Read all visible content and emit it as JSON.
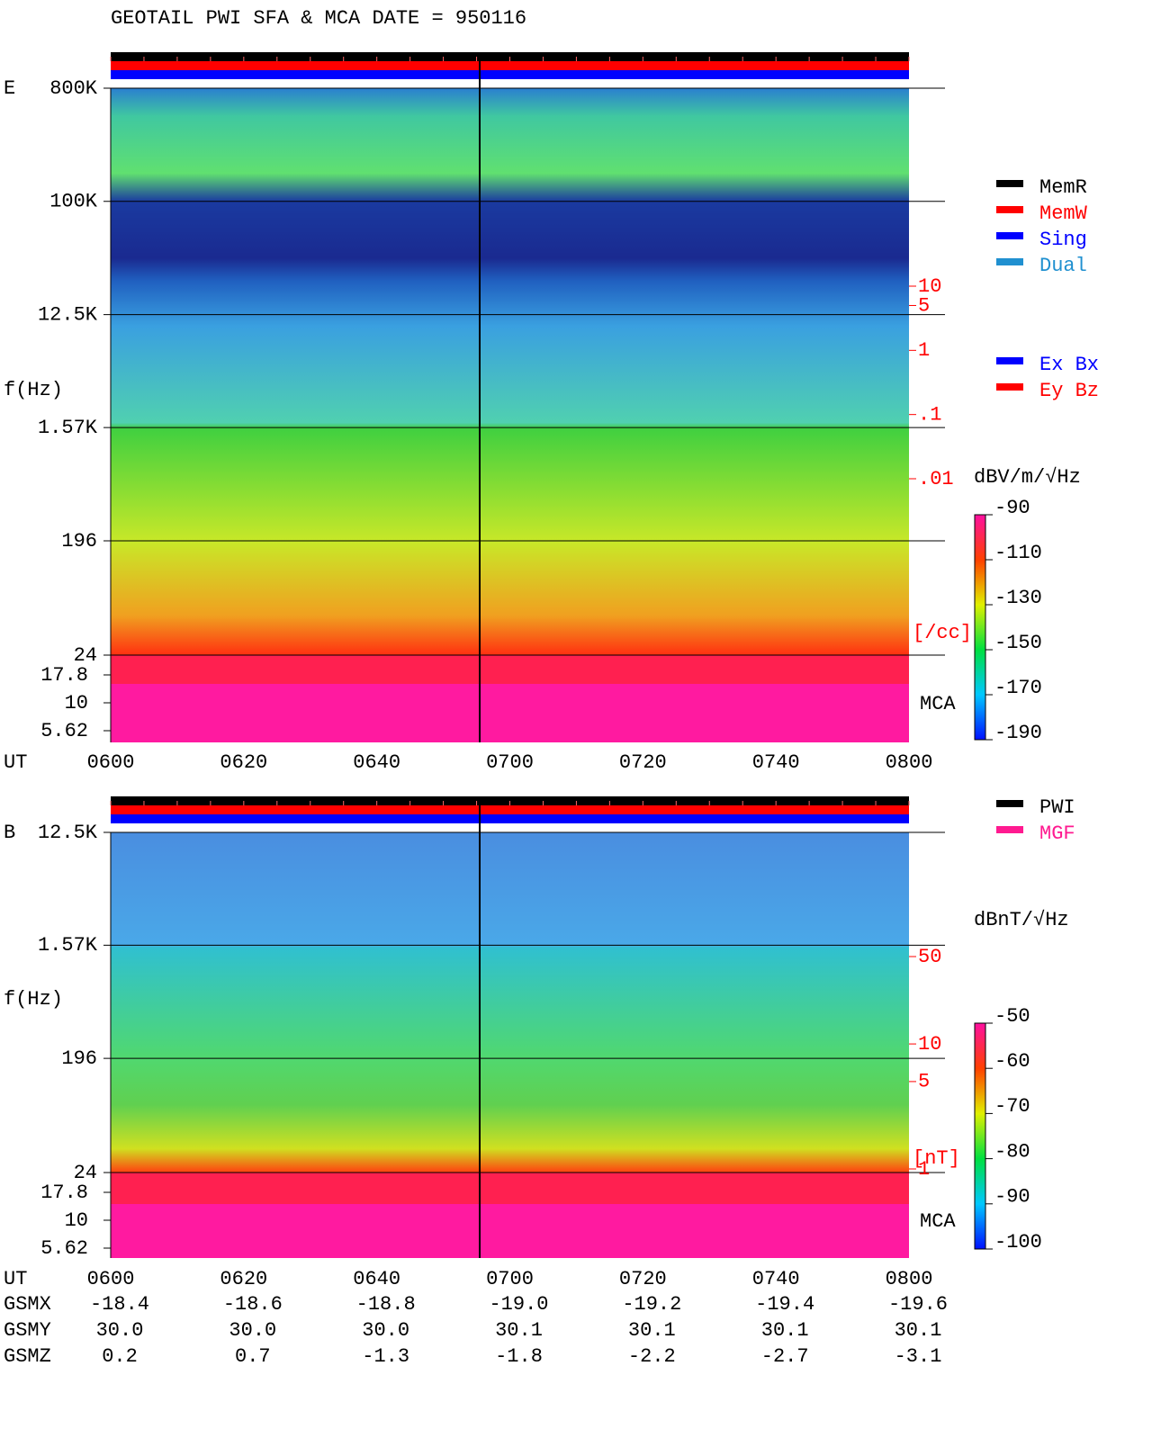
{
  "title": "GEOTAIL  PWI SFA & MCA  DATE = 950116",
  "chart_data": [
    {
      "type": "spectrogram",
      "panel_label": "E",
      "ylabel": "f(Hz)",
      "yscale": "log",
      "ylim": [
        24,
        800000
      ],
      "yticks": [
        {
          "value": 800000,
          "label": "800K"
        },
        {
          "value": 100000,
          "label": "100K"
        },
        {
          "value": 12500,
          "label": "12.5K"
        },
        {
          "value": 1570,
          "label": "1.57K"
        },
        196,
        24
      ],
      "mca_label": "MCA",
      "mca_ylim": [
        5.62,
        17.8
      ],
      "mca_yticks": [
        17.8,
        10,
        5.62
      ],
      "x_label": "UT",
      "xticks": [
        "0600",
        "0620",
        "0640",
        "0700",
        "0720",
        "0740",
        "0800"
      ],
      "colorbar": {
        "label": "dBV/m/√Hz",
        "lim": [
          -190,
          -90
        ],
        "ticks": [
          -90,
          -110,
          -130,
          -150,
          -170,
          -190
        ]
      },
      "density_axis": {
        "lim": [
          0.01,
          10
        ],
        "ticks": [
          10,
          5,
          1,
          {
            "value": 0.1,
            "label": ".1"
          },
          {
            "value": 0.01,
            "label": ".01"
          }
        ],
        "unit": "[/cc]",
        "color": "#ff0000"
      },
      "legend": [
        {
          "name": "MemR",
          "color": "#000000"
        },
        {
          "name": "MemW",
          "color": "#ff0000"
        },
        {
          "name": "Sing",
          "color": "#0000ff"
        },
        {
          "name": "Dual",
          "color": "#2090d0"
        }
      ],
      "legend2": [
        {
          "name": "Ex Bx",
          "color": "#0000ff"
        },
        {
          "name": "Ey Bz",
          "color": "#ff0000"
        }
      ]
    },
    {
      "type": "spectrogram",
      "panel_label": "B",
      "ylabel": "f(Hz)",
      "yscale": "log",
      "ylim": [
        24,
        12500
      ],
      "yticks": [
        {
          "value": 12500,
          "label": "12.5K"
        },
        {
          "value": 1570,
          "label": "1.57K"
        },
        196,
        24
      ],
      "mca_label": "MCA",
      "mca_ylim": [
        5.62,
        17.8
      ],
      "mca_yticks": [
        17.8,
        10,
        5.62
      ],
      "x_label": "UT",
      "xticks": [
        "0600",
        "0620",
        "0640",
        "0700",
        "0720",
        "0740",
        "0800"
      ],
      "colorbar": {
        "label": "dBnT/√Hz",
        "lim": [
          -100,
          -50
        ],
        "ticks": [
          -50,
          -60,
          -70,
          -80,
          -90,
          -100
        ]
      },
      "density_axis": {
        "lim": [
          1,
          50
        ],
        "ticks": [
          50,
          10,
          5,
          1
        ],
        "unit": "[nT]",
        "color": "#ff0000"
      },
      "legend": [
        {
          "name": "PWI",
          "color": "#000000"
        },
        {
          "name": "MGF",
          "color": "#ff1a90"
        }
      ]
    }
  ],
  "orbit": {
    "labels": [
      "GSMX",
      "GSMY",
      "GSMZ"
    ],
    "rows": [
      [
        "-18.4",
        "-18.6",
        "-18.8",
        "-19.0",
        "-19.2",
        "-19.4",
        "-19.6"
      ],
      [
        "30.0",
        "30.0",
        "30.0",
        "30.1",
        "30.1",
        "30.1",
        "30.1"
      ],
      [
        "0.2",
        "0.7",
        "-1.3",
        "-1.8",
        "-2.2",
        "-2.7",
        "-3.1"
      ]
    ]
  }
}
